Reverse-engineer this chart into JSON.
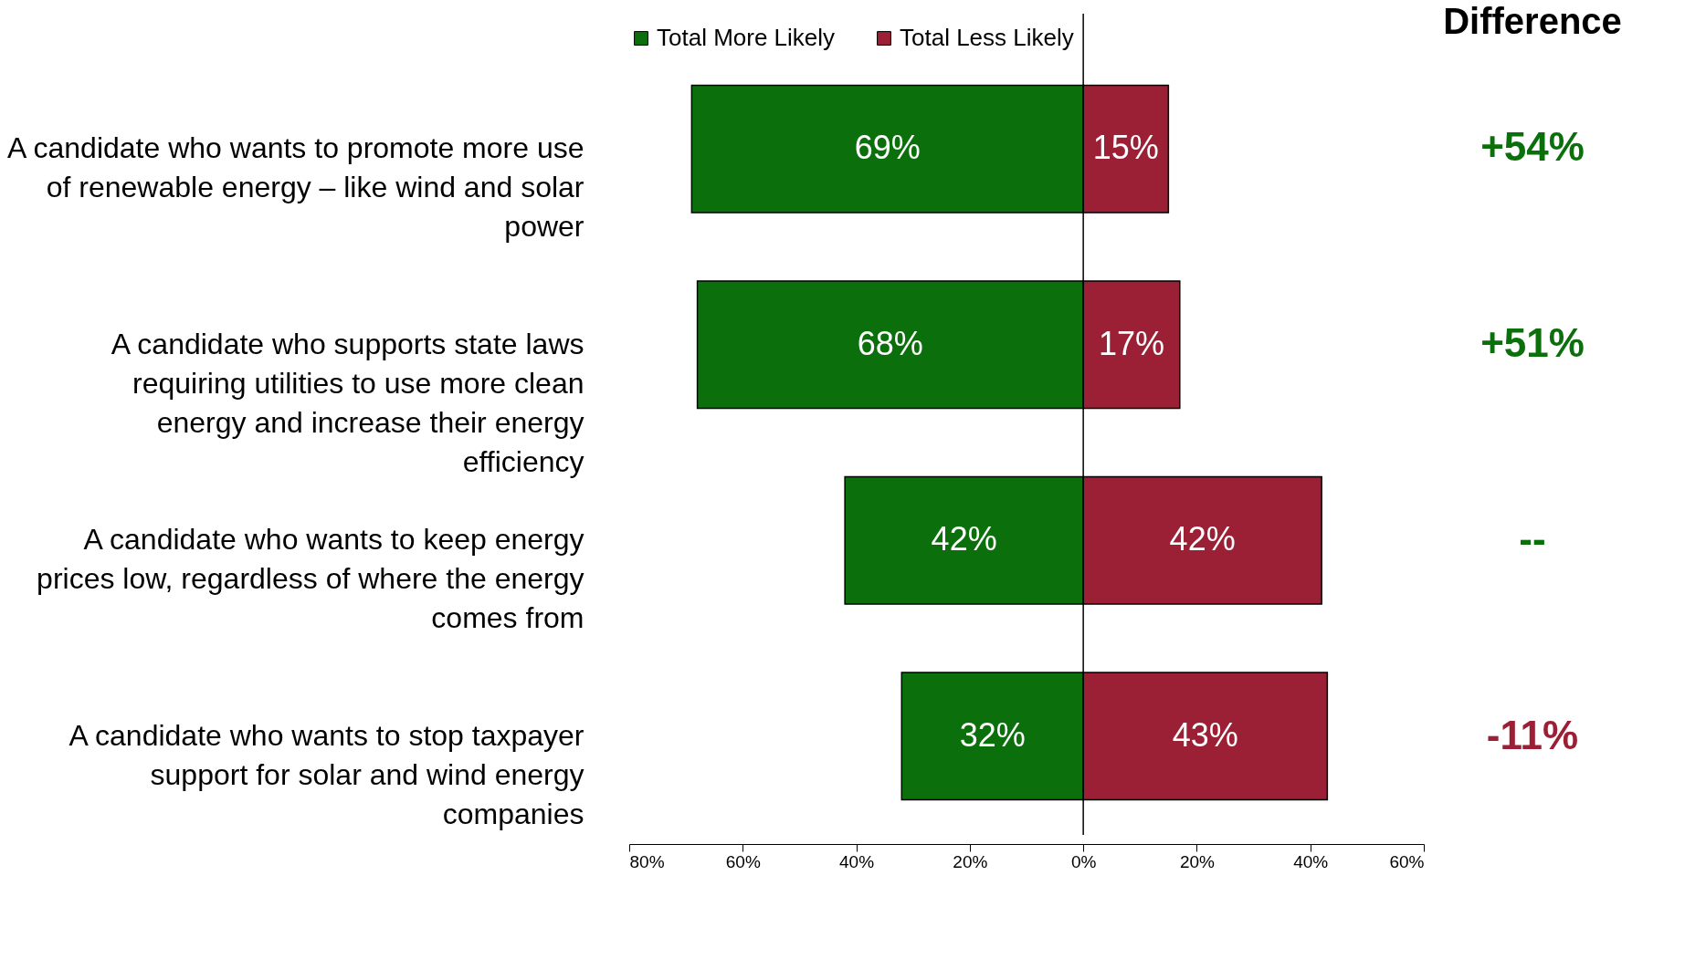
{
  "chart_data": {
    "type": "bar",
    "orientation": "horizontal",
    "categories": [
      "A candidate who wants to promote more use of renewable energy – like wind and solar power",
      "A candidate who supports state laws requiring utilities to use more clean energy and increase their energy efficiency",
      "A candidate who wants to keep energy prices low, regardless of where the energy comes from",
      "A candidate who wants to stop taxpayer support for solar and wind energy companies"
    ],
    "series": [
      {
        "name": "Total More Likely",
        "color": "#0b700b",
        "values": [
          69,
          68,
          42,
          32
        ],
        "base": [
          -69,
          -68,
          -42,
          -32
        ],
        "value_labels": [
          "69%",
          "68%",
          "42%",
          "32%"
        ]
      },
      {
        "name": "Total Less Likely",
        "color": "#9b1f35",
        "values": [
          15,
          17,
          42,
          43
        ],
        "value_labels": [
          "15%",
          "17%",
          "42%",
          "43%"
        ]
      }
    ],
    "xlim": [
      -80,
      60
    ],
    "xticks": [
      {
        "value": -80,
        "label": "80%"
      },
      {
        "value": -60,
        "label": "60%"
      },
      {
        "value": -40,
        "label": "40%"
      },
      {
        "value": -20,
        "label": "20%"
      },
      {
        "value": 0,
        "label": "0%"
      },
      {
        "value": 20,
        "label": "20%"
      },
      {
        "value": 40,
        "label": "40%"
      },
      {
        "value": 60,
        "label": "60%"
      }
    ],
    "ref_lines": [
      {
        "axis": "x",
        "value": 0
      }
    ],
    "legend": "top",
    "grid": false,
    "annotations": [
      "Difference",
      "+54%",
      "+51%",
      "--",
      "-11%"
    ]
  }
}
